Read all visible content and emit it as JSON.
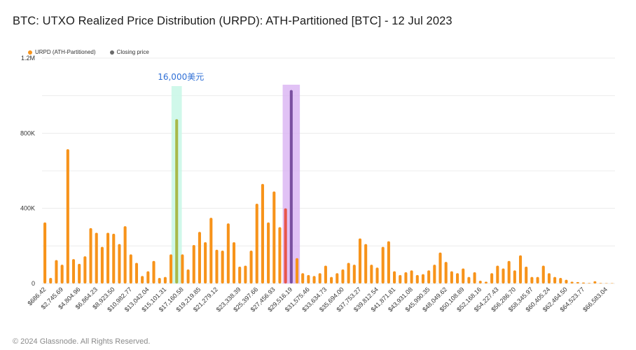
{
  "title": "BTC: UTXO Realized Price Distribution (URPD): ATH-Partitioned [BTC] - 12 Jul 2023",
  "legend": [
    {
      "label": "URPD (ATH-Partitioned)",
      "color": "#f7931a"
    },
    {
      "label": "Closing price",
      "color": "#6b6b6b"
    }
  ],
  "footer": "© 2024 Glassnode. All Rights Reserved.",
  "annotation": "16,000美元",
  "colors": {
    "bar": "#f7931a",
    "bar_highlight": "#e8564a",
    "band_green": "#c8f7e6",
    "band_purple": "#d9b3f2",
    "closing_bar": "#7a4fa0",
    "grid": "#ececec"
  },
  "chart_data": {
    "type": "bar",
    "title": "BTC: UTXO Realized Price Distribution (URPD): ATH-Partitioned [BTC] - 12 Jul 2023",
    "xlabel": "",
    "ylabel": "",
    "ylim": [
      0,
      1200000
    ],
    "yticks": [
      {
        "value": 0,
        "label": "0"
      },
      {
        "value": 400000,
        "label": "400K"
      },
      {
        "value": 800000,
        "label": "800K"
      },
      {
        "value": 1200000,
        "label": "1.2M"
      }
    ],
    "xticks": [
      "$686.42",
      "$2,745.69",
      "$4,804.96",
      "$6,864.23",
      "$8,923.50",
      "$10,982.77",
      "$13,042.04",
      "$15,101.31",
      "$17,160.58",
      "$19,219.85",
      "$21,279.12",
      "$23,338.39",
      "$25,397.66",
      "$27,456.93",
      "$29,516.19",
      "$31,575.46",
      "$33,634.73",
      "$35,694.00",
      "$37,753.27",
      "$39,812.54",
      "$41,871.81",
      "$43,931.08",
      "$45,990.35",
      "$48,049.62",
      "$50,108.89",
      "$52,168.16",
      "$54,227.43",
      "$56,286.70",
      "$58,345.97",
      "$60,405.24",
      "$62,464.50",
      "$64,523.77",
      "$66,583.04"
    ],
    "series": [
      {
        "name": "URPD (ATH-Partitioned)",
        "values": [
          325000,
          30000,
          125000,
          100000,
          715000,
          130000,
          105000,
          145000,
          295000,
          270000,
          195000,
          270000,
          265000,
          210000,
          305000,
          155000,
          110000,
          40000,
          65000,
          120000,
          30000,
          35000,
          155000,
          875000,
          155000,
          75000,
          205000,
          275000,
          220000,
          350000,
          180000,
          175000,
          320000,
          220000,
          90000,
          95000,
          175000,
          425000,
          530000,
          325000,
          490000,
          300000,
          400000,
          1030000,
          135000,
          55000,
          45000,
          40000,
          55000,
          95000,
          35000,
          55000,
          75000,
          110000,
          100000,
          240000,
          210000,
          100000,
          85000,
          195000,
          225000,
          65000,
          45000,
          60000,
          70000,
          45000,
          50000,
          70000,
          100000,
          165000,
          115000,
          65000,
          55000,
          80000,
          35000,
          60000,
          15000,
          10000,
          55000,
          95000,
          80000,
          120000,
          70000,
          150000,
          90000,
          35000,
          35000,
          95000,
          55000,
          35000,
          30000,
          20000,
          10000,
          8000,
          5000,
          3000,
          12000,
          3000,
          2000,
          2000
        ]
      }
    ],
    "highlight_indices": [
      23,
      42
    ],
    "closing_index": 43,
    "green_band_index": 23,
    "purple_band_indices": [
      42,
      43,
      44
    ]
  }
}
